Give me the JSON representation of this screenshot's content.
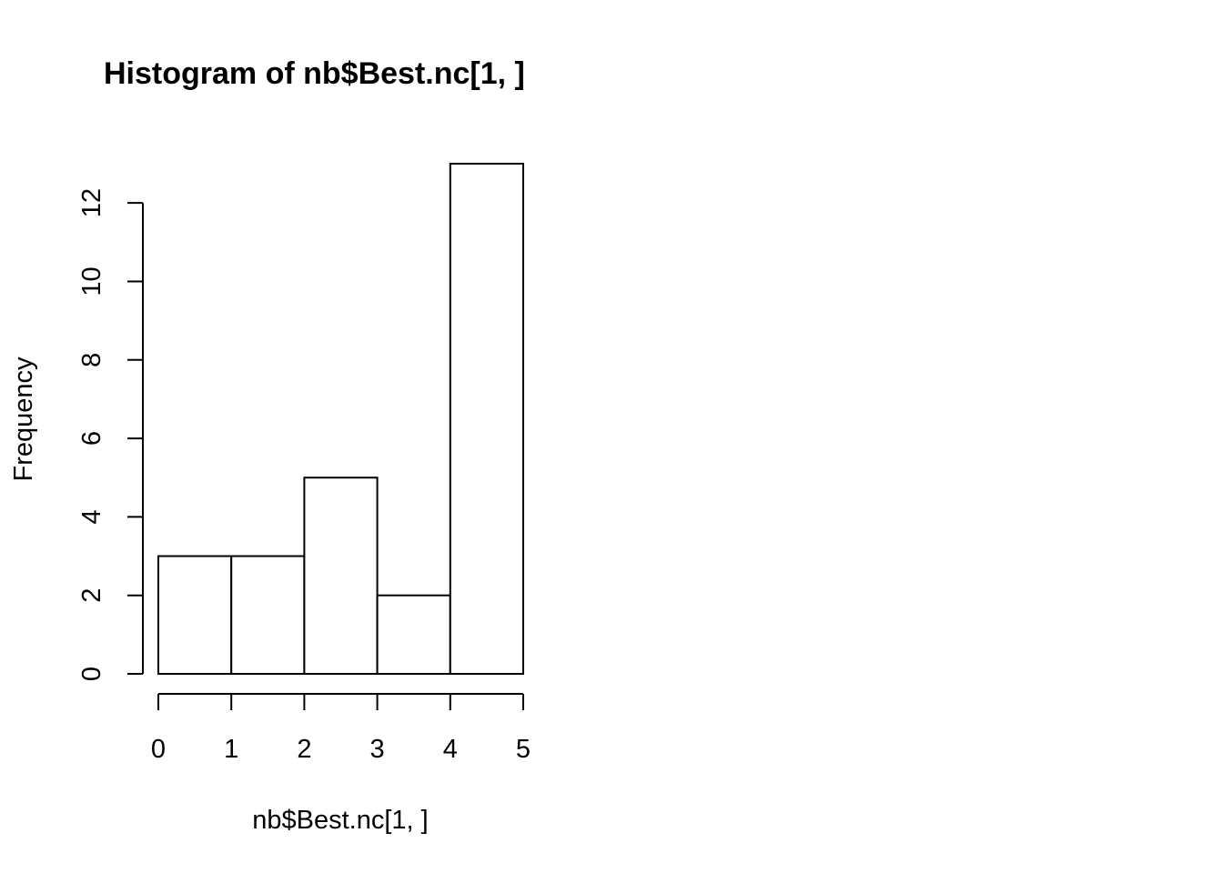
{
  "chart_data": {
    "type": "bar",
    "title": "Histogram of nb$Best.nc[1, ]",
    "xlabel": "nb$Best.nc[1, ]",
    "ylabel": "Frequency",
    "bins": [
      {
        "start": 0,
        "end": 1,
        "count": 3
      },
      {
        "start": 1,
        "end": 2,
        "count": 3
      },
      {
        "start": 2,
        "end": 3,
        "count": 5
      },
      {
        "start": 3,
        "end": 4,
        "count": 2
      },
      {
        "start": 4,
        "end": 5,
        "count": 13
      }
    ],
    "xlim": [
      0,
      5
    ],
    "ylim": [
      0,
      13
    ],
    "x_ticks": [
      0,
      1,
      2,
      3,
      4,
      5
    ],
    "y_ticks": [
      0,
      2,
      4,
      6,
      8,
      10,
      12
    ],
    "x_tick_labels": [
      "0",
      "1",
      "2",
      "3",
      "4",
      "5"
    ],
    "y_tick_labels": [
      "0",
      "2",
      "4",
      "6",
      "8",
      "10",
      "12"
    ],
    "grid": false,
    "legend": "none",
    "colors": {
      "bar_fill": "#ffffff",
      "bar_stroke": "#000000"
    }
  }
}
